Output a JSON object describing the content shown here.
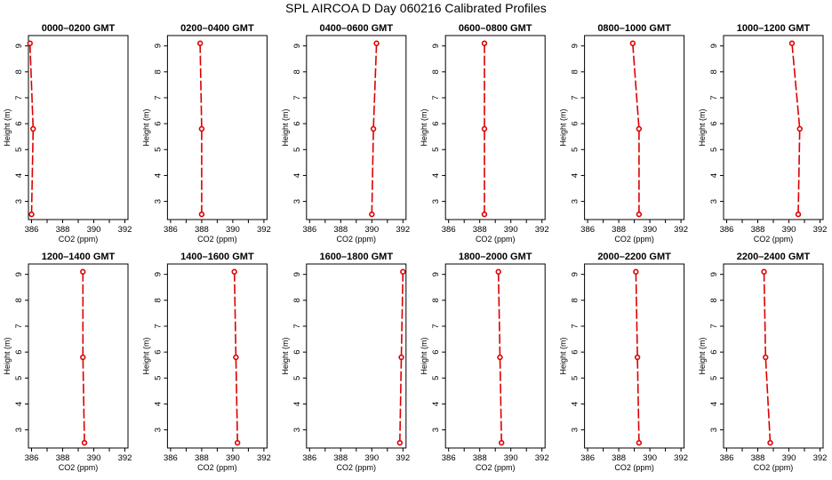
{
  "title": "SPL AIRCOA D  Day 060216  Calibrated Profiles",
  "colors": {
    "profile": "#dd0000",
    "axes": "#000000",
    "background": "#ffffff"
  },
  "chart_data": [
    {
      "type": "line",
      "title": "0000–0200 GMT",
      "xlabel": "CO2 (ppm)",
      "ylabel": "Height (m)",
      "xlim": [
        385.8,
        392.2
      ],
      "ylim": [
        2.3,
        9.4
      ],
      "xticks": [
        386,
        388,
        390,
        392
      ],
      "yticks": [
        3,
        4,
        5,
        6,
        7,
        8,
        9
      ],
      "x": [
        385.9,
        386.1,
        386.0
      ],
      "y": [
        9.1,
        5.8,
        2.5
      ]
    },
    {
      "type": "line",
      "title": "0200–0400 GMT",
      "xlabel": "CO2 (ppm)",
      "ylabel": "Height (m)",
      "xlim": [
        385.8,
        392.2
      ],
      "ylim": [
        2.3,
        9.4
      ],
      "xticks": [
        386,
        388,
        390,
        392
      ],
      "yticks": [
        3,
        4,
        5,
        6,
        7,
        8,
        9
      ],
      "x": [
        387.9,
        388.0,
        388.0
      ],
      "y": [
        9.1,
        5.8,
        2.5
      ]
    },
    {
      "type": "line",
      "title": "0400–0600 GMT",
      "xlabel": "CO2 (ppm)",
      "ylabel": "Height (m)",
      "xlim": [
        385.8,
        392.2
      ],
      "ylim": [
        2.3,
        9.4
      ],
      "xticks": [
        386,
        388,
        390,
        392
      ],
      "yticks": [
        3,
        4,
        5,
        6,
        7,
        8,
        9
      ],
      "x": [
        390.3,
        390.1,
        390.0
      ],
      "y": [
        9.1,
        5.8,
        2.5
      ]
    },
    {
      "type": "line",
      "title": "0600–0800 GMT",
      "xlabel": "CO2 (ppm)",
      "ylabel": "Height (m)",
      "xlim": [
        385.8,
        392.2
      ],
      "ylim": [
        2.3,
        9.4
      ],
      "xticks": [
        386,
        388,
        390,
        392
      ],
      "yticks": [
        3,
        4,
        5,
        6,
        7,
        8,
        9
      ],
      "x": [
        388.3,
        388.3,
        388.3
      ],
      "y": [
        9.1,
        5.8,
        2.5
      ]
    },
    {
      "type": "line",
      "title": "0800–1000 GMT",
      "xlabel": "CO2 (ppm)",
      "ylabel": "Height (m)",
      "xlim": [
        385.8,
        392.2
      ],
      "ylim": [
        2.3,
        9.4
      ],
      "xticks": [
        386,
        388,
        390,
        392
      ],
      "yticks": [
        3,
        4,
        5,
        6,
        7,
        8,
        9
      ],
      "x": [
        388.9,
        389.3,
        389.3
      ],
      "y": [
        9.1,
        5.8,
        2.5
      ]
    },
    {
      "type": "line",
      "title": "1000–1200 GMT",
      "xlabel": "CO2 (ppm)",
      "ylabel": "Height (m)",
      "xlim": [
        385.8,
        392.2
      ],
      "ylim": [
        2.3,
        9.4
      ],
      "xticks": [
        386,
        388,
        390,
        392
      ],
      "yticks": [
        3,
        4,
        5,
        6,
        7,
        8,
        9
      ],
      "x": [
        390.2,
        390.7,
        390.6
      ],
      "y": [
        9.1,
        5.8,
        2.5
      ]
    },
    {
      "type": "line",
      "title": "1200–1400 GMT",
      "xlabel": "CO2 (ppm)",
      "ylabel": "Height (m)",
      "xlim": [
        385.8,
        392.2
      ],
      "ylim": [
        2.3,
        9.4
      ],
      "xticks": [
        386,
        388,
        390,
        392
      ],
      "yticks": [
        3,
        4,
        5,
        6,
        7,
        8,
        9
      ],
      "x": [
        389.3,
        389.3,
        389.4
      ],
      "y": [
        9.1,
        5.8,
        2.5
      ]
    },
    {
      "type": "line",
      "title": "1400–1600 GMT",
      "xlabel": "CO2 (ppm)",
      "ylabel": "Height (m)",
      "xlim": [
        385.8,
        392.2
      ],
      "ylim": [
        2.3,
        9.4
      ],
      "xticks": [
        386,
        388,
        390,
        392
      ],
      "yticks": [
        3,
        4,
        5,
        6,
        7,
        8,
        9
      ],
      "x": [
        390.1,
        390.2,
        390.3
      ],
      "y": [
        9.1,
        5.8,
        2.5
      ]
    },
    {
      "type": "line",
      "title": "1600–1800 GMT",
      "xlabel": "CO2 (ppm)",
      "ylabel": "Height (m)",
      "xlim": [
        385.8,
        392.2
      ],
      "ylim": [
        2.3,
        9.4
      ],
      "xticks": [
        386,
        388,
        390,
        392
      ],
      "yticks": [
        3,
        4,
        5,
        6,
        7,
        8,
        9
      ],
      "x": [
        392.0,
        391.9,
        391.8
      ],
      "y": [
        9.1,
        5.8,
        2.5
      ]
    },
    {
      "type": "line",
      "title": "1800–2000 GMT",
      "xlabel": "CO2 (ppm)",
      "ylabel": "Height (m)",
      "xlim": [
        385.8,
        392.2
      ],
      "ylim": [
        2.3,
        9.4
      ],
      "xticks": [
        386,
        388,
        390,
        392
      ],
      "yticks": [
        3,
        4,
        5,
        6,
        7,
        8,
        9
      ],
      "x": [
        389.2,
        389.3,
        389.4
      ],
      "y": [
        9.1,
        5.8,
        2.5
      ]
    },
    {
      "type": "line",
      "title": "2000–2200 GMT",
      "xlabel": "CO2 (ppm)",
      "ylabel": "Height (m)",
      "xlim": [
        385.8,
        392.2
      ],
      "ylim": [
        2.3,
        9.4
      ],
      "xticks": [
        386,
        388,
        390,
        392
      ],
      "yticks": [
        3,
        4,
        5,
        6,
        7,
        8,
        9
      ],
      "x": [
        389.1,
        389.2,
        389.3
      ],
      "y": [
        9.1,
        5.8,
        2.5
      ]
    },
    {
      "type": "line",
      "title": "2200–2400 GMT",
      "xlabel": "CO2 (ppm)",
      "ylabel": "Height (m)",
      "xlim": [
        385.8,
        392.2
      ],
      "ylim": [
        2.3,
        9.4
      ],
      "xticks": [
        386,
        388,
        390,
        392
      ],
      "yticks": [
        3,
        4,
        5,
        6,
        7,
        8,
        9
      ],
      "x": [
        388.4,
        388.5,
        388.8
      ],
      "y": [
        9.1,
        5.8,
        2.5
      ]
    }
  ]
}
